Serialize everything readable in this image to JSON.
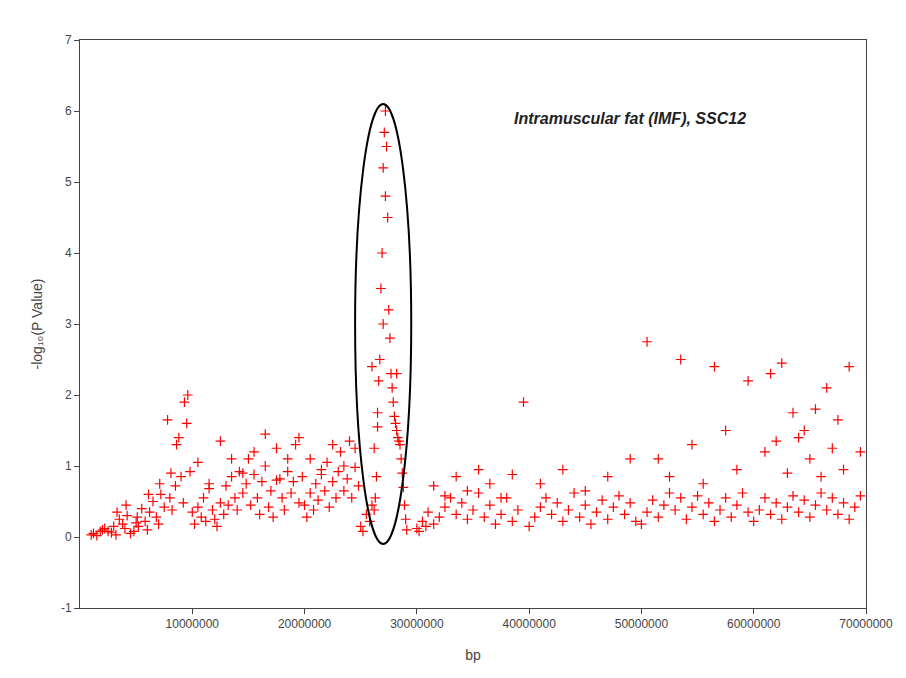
{
  "chart_data": {
    "type": "scatter",
    "title": "Intramuscular fat (IMF), SSC12",
    "xlabel": "bp",
    "ylabel": "-log₁₀(P Value)",
    "color": "#FF0000",
    "marker": "cross",
    "grid": false,
    "xlim": [
      0,
      70000000
    ],
    "ylim": [
      -1,
      7
    ],
    "xticks": [
      10000000,
      20000000,
      30000000,
      40000000,
      50000000,
      60000000,
      70000000
    ],
    "yticks": [
      -1,
      0,
      1,
      2,
      3,
      4,
      5,
      6,
      7
    ],
    "ellipse": {
      "center_x": 27000000,
      "center_y": 3.0,
      "width": 5000000,
      "height": 6.2,
      "color": "#000000"
    },
    "x": [
      1200000,
      1500000,
      2000000,
      2500000,
      3000000,
      3200000,
      3500000,
      3800000,
      4000000,
      4200000,
      4500000,
      4800000,
      5000000,
      5200000,
      5500000,
      5800000,
      6000000,
      6200000,
      6500000,
      6800000,
      7000000,
      7200000,
      7500000,
      7800000,
      8000000,
      8200000,
      8500000,
      8800000,
      9000000,
      9200000,
      9500000,
      9800000,
      1000000,
      1800000,
      2200000,
      2800000,
      3300000,
      4100000,
      5100000,
      6100000,
      7100000,
      8100000,
      8600000,
      9300000,
      9600000,
      10000000,
      10200000,
      10500000,
      10800000,
      11000000,
      11200000,
      11500000,
      11800000,
      12000000,
      12200000,
      12500000,
      12800000,
      13000000,
      13200000,
      13500000,
      13800000,
      14000000,
      14200000,
      14500000,
      14800000,
      15000000,
      15200000,
      15500000,
      15800000,
      16000000,
      16200000,
      16500000,
      16800000,
      17000000,
      17200000,
      17500000,
      17800000,
      18000000,
      18200000,
      18500000,
      18800000,
      19000000,
      19200000,
      19500000,
      19800000,
      10500000,
      11500000,
      12500000,
      13500000,
      14500000,
      15500000,
      16500000,
      17500000,
      18500000,
      19500000,
      20000000,
      20200000,
      20500000,
      20800000,
      21000000,
      21200000,
      21500000,
      21800000,
      22000000,
      22200000,
      22500000,
      22800000,
      23000000,
      23200000,
      23500000,
      23800000,
      24000000,
      24200000,
      24500000,
      24800000,
      20500000,
      21500000,
      22500000,
      23500000,
      24500000,
      25000000,
      25200000,
      25500000,
      25800000,
      26000000,
      26200000,
      26300000,
      26500000,
      26600000,
      26700000,
      26800000,
      26900000,
      27000000,
      27100000,
      27200000,
      27300000,
      27400000,
      27500000,
      27600000,
      27700000,
      27800000,
      27900000,
      28000000,
      28100000,
      28200000,
      28300000,
      28400000,
      28500000,
      28600000,
      28700000,
      28800000,
      28900000,
      29000000,
      29100000,
      26000000,
      26500000,
      27000000,
      26200000,
      26400000,
      27200000,
      28200000,
      30000000,
      30200000,
      30500000,
      30800000,
      31000000,
      31500000,
      32000000,
      32500000,
      33000000,
      33500000,
      34000000,
      34500000,
      35000000,
      35500000,
      36000000,
      36500000,
      37000000,
      37500000,
      38000000,
      38500000,
      39000000,
      39500000,
      31500000,
      32500000,
      33500000,
      34500000,
      35500000,
      36500000,
      37500000,
      38500000,
      40000000,
      40500000,
      41000000,
      41500000,
      42000000,
      42500000,
      43000000,
      43500000,
      44000000,
      44500000,
      45000000,
      45500000,
      46000000,
      46500000,
      47000000,
      47500000,
      48000000,
      48500000,
      49000000,
      49500000,
      41000000,
      43000000,
      45000000,
      47000000,
      49000000,
      50000000,
      50500000,
      51000000,
      51500000,
      52000000,
      52500000,
      53000000,
      53500000,
      54000000,
      54500000,
      55000000,
      55500000,
      56000000,
      56500000,
      57000000,
      57500000,
      58000000,
      58500000,
      59000000,
      59500000,
      50500000,
      51500000,
      52500000,
      53500000,
      54500000,
      55500000,
      56500000,
      57500000,
      58500000,
      59500000,
      60000000,
      60500000,
      61000000,
      61500000,
      62000000,
      62500000,
      63000000,
      63500000,
      64000000,
      64500000,
      65000000,
      65500000,
      66000000,
      66500000,
      67000000,
      67500000,
      68000000,
      68500000,
      69000000,
      69500000,
      61000000,
      62000000,
      63000000,
      64000000,
      65000000,
      66000000,
      67000000,
      68000000,
      61500000,
      62500000,
      63500000,
      64500000,
      65500000,
      66500000,
      67500000,
      68500000,
      69500000
    ],
    "values": [
      0.05,
      0.02,
      0.1,
      0.08,
      0.15,
      0.03,
      0.25,
      0.18,
      0.12,
      0.3,
      0.05,
      0.08,
      0.2,
      0.15,
      0.4,
      0.22,
      0.1,
      0.35,
      0.5,
      0.28,
      0.18,
      0.6,
      0.42,
      1.65,
      0.55,
      0.38,
      0.72,
      1.4,
      0.85,
      0.48,
      1.6,
      0.92,
      0.03,
      0.08,
      0.12,
      0.06,
      0.35,
      0.45,
      0.28,
      0.6,
      0.75,
      0.9,
      1.3,
      1.9,
      2.0,
      0.35,
      0.18,
      0.42,
      0.28,
      0.55,
      0.22,
      0.68,
      0.38,
      0.25,
      0.15,
      0.48,
      0.32,
      0.72,
      0.45,
      0.85,
      0.55,
      0.38,
      0.92,
      0.62,
      0.75,
      1.1,
      0.45,
      0.88,
      0.55,
      0.32,
      0.78,
      1.0,
      0.42,
      0.65,
      0.28,
      1.25,
      0.82,
      0.55,
      0.38,
      0.92,
      0.62,
      0.78,
      1.3,
      0.48,
      0.85,
      1.05,
      0.75,
      1.35,
      1.1,
      0.9,
      1.2,
      1.45,
      0.8,
      1.1,
      1.4,
      0.45,
      0.28,
      0.62,
      0.38,
      0.75,
      0.52,
      0.88,
      0.65,
      1.05,
      0.42,
      0.78,
      0.55,
      0.92,
      1.2,
      0.65,
      0.82,
      1.35,
      0.55,
      0.98,
      0.72,
      1.1,
      0.95,
      1.3,
      1.0,
      1.25,
      0.15,
      0.08,
      0.32,
      0.22,
      0.45,
      0.38,
      0.55,
      1.75,
      2.2,
      2.5,
      3.5,
      4.0,
      5.2,
      5.7,
      6.0,
      5.5,
      4.5,
      3.2,
      2.8,
      2.3,
      2.1,
      1.9,
      1.7,
      1.6,
      1.5,
      1.4,
      1.35,
      1.3,
      1.1,
      0.9,
      0.7,
      0.45,
      0.25,
      0.1,
      2.4,
      1.55,
      3.0,
      1.25,
      0.85,
      4.8,
      2.3,
      0.12,
      0.08,
      0.22,
      0.15,
      0.35,
      0.18,
      0.28,
      0.42,
      0.55,
      0.32,
      0.48,
      0.25,
      0.38,
      0.62,
      0.28,
      0.45,
      0.18,
      0.32,
      0.55,
      0.22,
      0.38,
      1.9,
      0.72,
      0.58,
      0.85,
      0.65,
      0.95,
      0.75,
      0.55,
      0.88,
      0.15,
      0.28,
      0.42,
      0.55,
      0.32,
      0.48,
      0.22,
      0.38,
      0.62,
      0.28,
      0.45,
      0.18,
      0.35,
      0.52,
      0.25,
      0.42,
      0.58,
      0.32,
      0.48,
      0.22,
      0.75,
      0.95,
      0.65,
      0.85,
      1.1,
      0.18,
      0.35,
      0.52,
      0.28,
      0.45,
      0.62,
      0.38,
      0.55,
      0.25,
      0.42,
      0.58,
      0.32,
      0.48,
      0.22,
      0.38,
      0.55,
      0.28,
      0.45,
      0.62,
      0.35,
      2.75,
      1.1,
      0.85,
      2.5,
      1.3,
      0.75,
      2.4,
      1.5,
      0.95,
      2.2,
      0.22,
      0.38,
      0.55,
      0.32,
      0.48,
      0.25,
      0.42,
      0.58,
      0.35,
      0.52,
      0.28,
      0.45,
      0.62,
      0.38,
      0.55,
      0.32,
      0.48,
      0.25,
      0.42,
      0.58,
      1.2,
      1.35,
      0.9,
      1.4,
      1.1,
      0.85,
      1.25,
      0.95,
      2.3,
      2.45,
      1.75,
      1.5,
      1.8,
      2.1,
      1.65,
      2.4,
      1.2
    ]
  }
}
